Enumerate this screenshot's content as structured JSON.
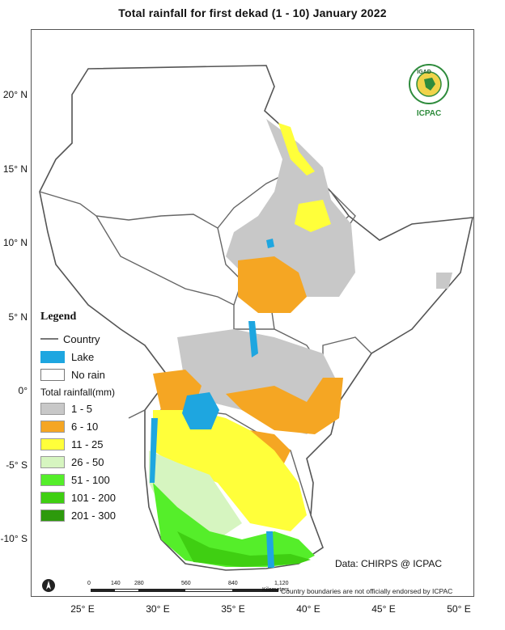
{
  "title": "Total rainfall  for   first  dekad (1 - 10)  January 2022",
  "y_ticks": [
    {
      "label": "20° N",
      "lat": 20
    },
    {
      "label": "15° N",
      "lat": 15
    },
    {
      "label": "10° N",
      "lat": 10
    },
    {
      "label": "5° N",
      "lat": 5
    },
    {
      "label": "0°",
      "lat": 0
    },
    {
      "label": "-5° S",
      "lat": -5
    },
    {
      "label": "-10° S",
      "lat": -10
    }
  ],
  "x_ticks": [
    {
      "label": "25° E",
      "lon": 25
    },
    {
      "label": "30° E",
      "lon": 30
    },
    {
      "label": "35° E",
      "lon": 35
    },
    {
      "label": "40° E",
      "lon": 40
    },
    {
      "label": "45° E",
      "lon": 45
    },
    {
      "label": "50° E",
      "lon": 50
    }
  ],
  "legend": {
    "title": "Legend",
    "country": "Country",
    "lake": "Lake",
    "no_rain": "No rain",
    "rainfall_title": "Total rainfall(mm)",
    "classes": [
      {
        "label": "1 - 5",
        "color": "#c8c8c8"
      },
      {
        "label": "6 - 10",
        "color": "#f5a623"
      },
      {
        "label": "11 - 25",
        "color": "#ffff3a"
      },
      {
        "label": "26 - 50",
        "color": "#d6f5c0"
      },
      {
        "label": "51 - 100",
        "color": "#55ee2a"
      },
      {
        "label": "101 - 200",
        "color": "#3fcf12"
      },
      {
        "label": "201 - 300",
        "color": "#2d9a0c"
      }
    ],
    "lake_color": "#1ea6e0"
  },
  "logo": {
    "text_top": "IGAD",
    "text_bottom": "ICPAC"
  },
  "credit": "Data: CHIRPS @ ICPAC",
  "disclaimer": "Country boundaries are not officially endorsed by ICPAC",
  "scale": {
    "labels": [
      "0",
      "140",
      "280",
      "560",
      "840",
      "1,120"
    ],
    "unit": "Kilometers"
  }
}
